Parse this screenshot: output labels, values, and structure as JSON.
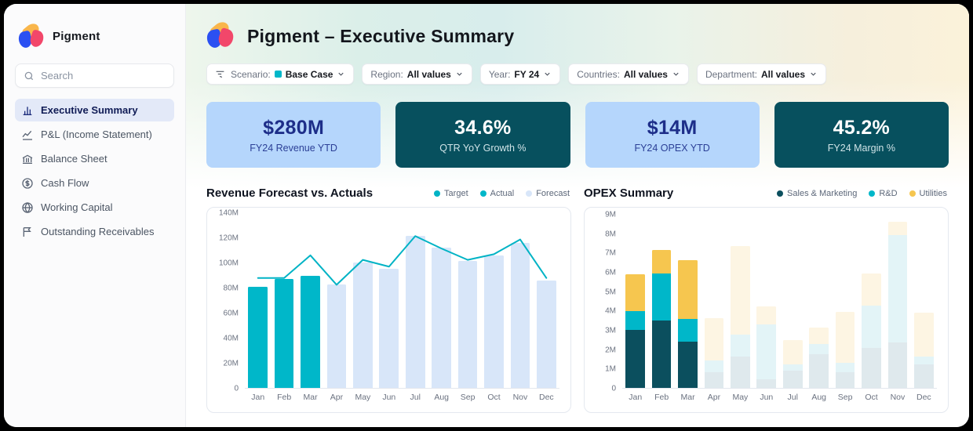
{
  "app": {
    "brand": "Pigment"
  },
  "sidebar": {
    "search_placeholder": "Search",
    "items": [
      {
        "label": "Executive Summary",
        "icon": "column-chart-icon",
        "active": true
      },
      {
        "label": "P&L (Income Statement)",
        "icon": "line-chart-icon",
        "active": false
      },
      {
        "label": "Balance Sheet",
        "icon": "bank-icon",
        "active": false
      },
      {
        "label": "Cash Flow",
        "icon": "dollar-cycle-icon",
        "active": false
      },
      {
        "label": "Working Capital",
        "icon": "globe-icon",
        "active": false
      },
      {
        "label": "Outstanding Receivables",
        "icon": "flag-icon",
        "active": false
      }
    ]
  },
  "header": {
    "title": "Pigment – Executive Summary"
  },
  "filters": [
    {
      "label": "Scenario:",
      "value": "Base Case",
      "swatch": "#00b7c9",
      "has_funnel_icon": true
    },
    {
      "label": "Region:",
      "value": "All values"
    },
    {
      "label": "Year:",
      "value": "FY 24"
    },
    {
      "label": "Countries:",
      "value": "All values"
    },
    {
      "label": "Department:",
      "value": "All values"
    }
  ],
  "kpis": [
    {
      "value": "$280M",
      "label": "FY24 Revenue YTD",
      "variant": "light",
      "bg": "#b5d6fc"
    },
    {
      "value": "34.6%",
      "label": "QTR YoY Growth %",
      "variant": "dark",
      "bg": "#07505e"
    },
    {
      "value": "$14M",
      "label": "FY24 OPEX YTD",
      "variant": "light",
      "bg": "#b5d6fc"
    },
    {
      "value": "45.2%",
      "label": "FY24 Margin %",
      "variant": "dark",
      "bg": "#07505e"
    }
  ],
  "chart_data": [
    {
      "type": "bar",
      "subtype": "bars-with-target-line",
      "title": "Revenue Forecast vs. Actuals",
      "categories": [
        "Jan",
        "Feb",
        "Mar",
        "Apr",
        "May",
        "Jun",
        "Jul",
        "Aug",
        "Sep",
        "Oct",
        "Nov",
        "Dec"
      ],
      "unit": "M",
      "ylim": [
        0,
        148
      ],
      "ytick_values": [
        0,
        20,
        40,
        60,
        80,
        100,
        120,
        140
      ],
      "ytick_labels": [
        "0",
        "20M",
        "40M",
        "60M",
        "80M",
        "100M",
        "120M",
        "140M"
      ],
      "grid": false,
      "legend_position": "top-right",
      "series": [
        {
          "name": "Target",
          "kind": "line",
          "color": "#00b3c5",
          "values": [
            97,
            97,
            117,
            91,
            113,
            107,
            134,
            123,
            113,
            118,
            131,
            97
          ]
        },
        {
          "name": "Actual",
          "kind": "bar",
          "color": "#00b7c9",
          "values": [
            89,
            96,
            99,
            null,
            null,
            null,
            null,
            null,
            null,
            null,
            null,
            null
          ]
        },
        {
          "name": "Forecast",
          "kind": "bar",
          "color": "#d8e6f9",
          "values": [
            null,
            null,
            null,
            91,
            111,
            105,
            134,
            124,
            112,
            117,
            128,
            95
          ]
        }
      ]
    },
    {
      "type": "bar",
      "subtype": "stacked",
      "title": "OPEX Summary",
      "categories": [
        "Jan",
        "Feb",
        "Mar",
        "Apr",
        "May",
        "Jun",
        "Jul",
        "Aug",
        "Sep",
        "Oct",
        "Nov",
        "Dec"
      ],
      "unit": "M",
      "ylim": [
        0,
        9.6
      ],
      "ytick_values": [
        0,
        1,
        2,
        3,
        4,
        5,
        6,
        7,
        8,
        9
      ],
      "ytick_labels": [
        "0",
        "1M",
        "2M",
        "3M",
        "4M",
        "5M",
        "6M",
        "7M",
        "8M",
        "9M"
      ],
      "grid": false,
      "legend_position": "top-right",
      "actual_months": 3,
      "series": [
        {
          "name": "Sales & Marketing",
          "kind": "bar",
          "color": "#0b4f5e",
          "muted_color": "#dfe9ed",
          "values": [
            3.3,
            3.85,
            2.65,
            0.9,
            1.8,
            0.5,
            1.0,
            1.95,
            0.9,
            2.3,
            2.6,
            1.35
          ]
        },
        {
          "name": "R&D",
          "kind": "bar",
          "color": "#00b7c9",
          "muted_color": "#e3f4f7",
          "values": [
            1.1,
            2.7,
            1.3,
            0.65,
            1.25,
            3.15,
            0.35,
            0.55,
            0.55,
            2.4,
            6.15,
            0.45
          ]
        },
        {
          "name": "Utilities",
          "kind": "bar",
          "color": "#f6c64f",
          "muted_color": "#fdf5e3",
          "values": [
            2.1,
            1.35,
            3.35,
            2.45,
            5.05,
            1.0,
            1.4,
            0.95,
            2.9,
            1.85,
            0.75,
            2.5
          ]
        }
      ]
    }
  ]
}
